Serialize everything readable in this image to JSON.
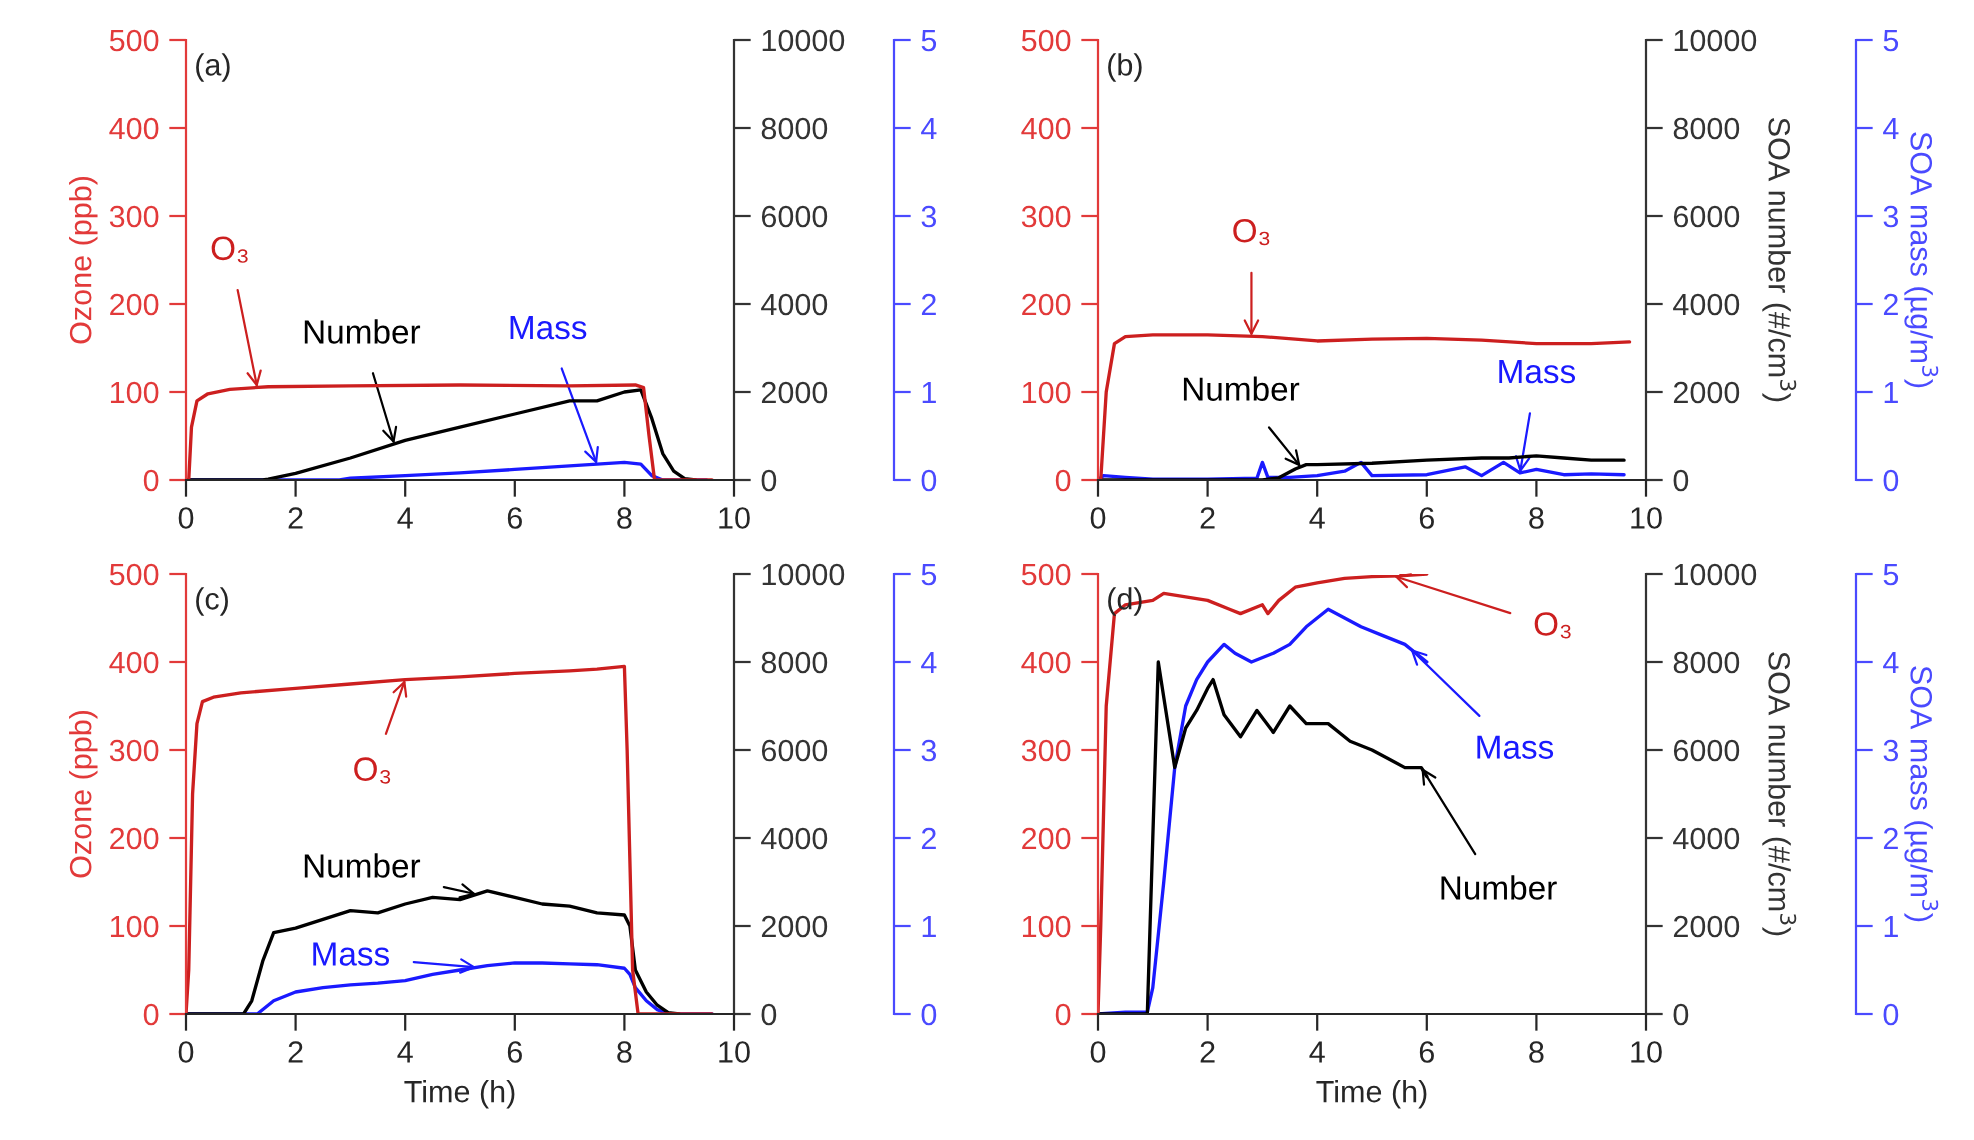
{
  "chart_data": [
    {
      "type": "line",
      "annotations": [
        "(a)"
      ],
      "ylabel": "Ozone (ppb)",
      "xlim": [
        0,
        10
      ],
      "xticks": [
        0,
        2,
        4,
        6,
        8,
        10
      ],
      "ylim": [
        0,
        500
      ],
      "yticks": [
        0,
        100,
        200,
        300,
        400,
        500
      ],
      "y2lim": [
        0,
        10000
      ],
      "y2ticks": [
        0,
        2000,
        4000,
        6000,
        8000,
        10000
      ],
      "y3lim": [
        0,
        5
      ],
      "y3ticks": [
        0,
        1,
        2,
        3,
        4,
        5
      ],
      "series": [
        {
          "name": "O₃",
          "color": "#cc1f1f",
          "x": [
            0,
            0.05,
            0.1,
            0.2,
            0.4,
            0.8,
            1.5,
            3,
            5,
            7,
            8.2,
            8.35,
            8.45,
            8.55,
            9.6
          ],
          "values": [
            0,
            0,
            60,
            90,
            98,
            103,
            106,
            107,
            108,
            107,
            108,
            105,
            50,
            0,
            0
          ]
        },
        {
          "name": "Number",
          "color": "#000000",
          "axis": "y2",
          "x": [
            0,
            1.4,
            1.5,
            2,
            3,
            4,
            5,
            6,
            7,
            7.5,
            8,
            8.3,
            8.5,
            8.7,
            8.9,
            9.1,
            9.3
          ],
          "values": [
            0,
            0,
            20,
            150,
            500,
            900,
            1200,
            1500,
            1800,
            1800,
            2000,
            2050,
            1400,
            600,
            200,
            30,
            0
          ]
        },
        {
          "name": "Mass",
          "color": "#1a1aff",
          "axis": "y3",
          "x": [
            0,
            2.8,
            3,
            4,
            5,
            6,
            7,
            8,
            8.3,
            8.5,
            8.7,
            9.5
          ],
          "values": [
            0,
            0,
            0.02,
            0.05,
            0.08,
            0.12,
            0.16,
            0.2,
            0.18,
            0.05,
            0,
            0
          ]
        }
      ]
    },
    {
      "type": "line",
      "annotations": [
        "(b)"
      ],
      "y2label": "SOA number (#/cm$^{3}$)",
      "y3label": "SOA mass (µg/m$^{3}$)",
      "xlim": [
        0,
        10
      ],
      "xticks": [
        0,
        2,
        4,
        6,
        8,
        10
      ],
      "ylim": [
        0,
        500
      ],
      "yticks": [
        0,
        100,
        200,
        300,
        400,
        500
      ],
      "y2lim": [
        0,
        10000
      ],
      "y2ticks": [
        0,
        2000,
        4000,
        6000,
        8000,
        10000
      ],
      "y3lim": [
        0,
        5
      ],
      "y3ticks": [
        0,
        1,
        2,
        3,
        4,
        5
      ],
      "series": [
        {
          "name": "O₃",
          "color": "#cc1f1f",
          "x": [
            0,
            0.05,
            0.15,
            0.3,
            0.5,
            1,
            2,
            3,
            4,
            5,
            6,
            7,
            8,
            9,
            9.7
          ],
          "values": [
            0,
            0,
            100,
            155,
            163,
            165,
            165,
            163,
            158,
            160,
            161,
            159,
            155,
            155,
            157
          ]
        },
        {
          "name": "Number",
          "color": "#000000",
          "axis": "y2",
          "x": [
            0,
            3,
            3.3,
            3.6,
            3.8,
            4,
            5,
            6,
            7,
            7.5,
            8,
            8.5,
            9,
            9.6
          ],
          "values": [
            0,
            0,
            50,
            250,
            350,
            350,
            380,
            450,
            500,
            500,
            550,
            500,
            450,
            450
          ]
        },
        {
          "name": "Mass",
          "color": "#1a1aff",
          "axis": "y3",
          "x": [
            0,
            0.1,
            0.5,
            1,
            2,
            2.9,
            3,
            3.1,
            3.5,
            4,
            4.5,
            4.8,
            5,
            6,
            6.7,
            7,
            7.4,
            7.7,
            8,
            8.5,
            9,
            9.6
          ],
          "values": [
            0,
            0.05,
            0.03,
            0.01,
            0.01,
            0.02,
            0.2,
            0.03,
            0.03,
            0.05,
            0.1,
            0.2,
            0.05,
            0.06,
            0.15,
            0.05,
            0.2,
            0.08,
            0.12,
            0.06,
            0.07,
            0.06
          ]
        }
      ]
    },
    {
      "type": "line",
      "annotations": [
        "(c)"
      ],
      "ylabel": "Ozone (ppb)",
      "xlabel": "Time (h)",
      "xlim": [
        0,
        10
      ],
      "xticks": [
        0,
        2,
        4,
        6,
        8,
        10
      ],
      "ylim": [
        0,
        500
      ],
      "yticks": [
        0,
        100,
        200,
        300,
        400,
        500
      ],
      "y2lim": [
        0,
        10000
      ],
      "y2ticks": [
        0,
        2000,
        4000,
        6000,
        8000,
        10000
      ],
      "y3lim": [
        0,
        5
      ],
      "y3ticks": [
        0,
        1,
        2,
        3,
        4,
        5
      ],
      "series": [
        {
          "name": "O₃",
          "color": "#cc1f1f",
          "x": [
            0,
            0.05,
            0.12,
            0.2,
            0.3,
            0.5,
            1,
            2,
            3,
            4,
            5,
            6,
            7,
            7.5,
            8,
            8.05,
            8.15,
            8.25,
            9.6
          ],
          "values": [
            0,
            50,
            250,
            330,
            355,
            360,
            365,
            370,
            375,
            380,
            383,
            387,
            390,
            392,
            395,
            300,
            50,
            0,
            0
          ]
        },
        {
          "name": "Number",
          "color": "#000000",
          "axis": "y2",
          "x": [
            0,
            1.05,
            1.2,
            1.4,
            1.6,
            2,
            2.5,
            3,
            3.5,
            4,
            4.5,
            5,
            5.5,
            6,
            6.5,
            7,
            7.5,
            8,
            8.1,
            8.2,
            8.4,
            8.6,
            8.8,
            9
          ],
          "values": [
            0,
            0,
            300,
            1200,
            1850,
            1950,
            2150,
            2350,
            2300,
            2500,
            2650,
            2600,
            2800,
            2650,
            2500,
            2450,
            2300,
            2250,
            2000,
            1000,
            500,
            200,
            30,
            0
          ]
        },
        {
          "name": "Mass",
          "color": "#1a1aff",
          "axis": "y3",
          "x": [
            0,
            1.3,
            1.6,
            2,
            2.5,
            3,
            3.5,
            4,
            4.5,
            5,
            5.5,
            6,
            6.5,
            7,
            7.5,
            8,
            8.1,
            8.2,
            8.4,
            8.6,
            8.8,
            9.6
          ],
          "values": [
            0,
            0,
            0.15,
            0.25,
            0.3,
            0.33,
            0.35,
            0.38,
            0.45,
            0.5,
            0.55,
            0.58,
            0.58,
            0.57,
            0.56,
            0.52,
            0.45,
            0.3,
            0.15,
            0.05,
            0,
            0
          ]
        }
      ]
    },
    {
      "type": "line",
      "annotations": [
        "(d)"
      ],
      "xlabel": "Time (h)",
      "y2label": "SOA number (#/cm$^{3}$)",
      "y3label": "SOA mass (µg/m$^{3}$)",
      "xlim": [
        0,
        10
      ],
      "xticks": [
        0,
        2,
        4,
        6,
        8,
        10
      ],
      "ylim": [
        0,
        500
      ],
      "yticks": [
        0,
        100,
        200,
        300,
        400,
        500
      ],
      "y2lim": [
        0,
        10000
      ],
      "y2ticks": [
        0,
        2000,
        4000,
        6000,
        8000,
        10000
      ],
      "y3lim": [
        0,
        5
      ],
      "y3ticks": [
        0,
        1,
        2,
        3,
        4,
        5
      ],
      "series": [
        {
          "name": "O₃",
          "color": "#cc1f1f",
          "x": [
            0,
            0.05,
            0.15,
            0.3,
            0.5,
            1,
            1.2,
            2,
            2.4,
            2.6,
            3,
            3.1,
            3.3,
            3.6,
            4,
            4.5,
            5,
            5.5,
            6
          ],
          "values": [
            0,
            100,
            350,
            455,
            465,
            470,
            478,
            470,
            460,
            455,
            465,
            455,
            470,
            485,
            490,
            495,
            497,
            498,
            500
          ]
        },
        {
          "name": "Mass",
          "color": "#1a1aff",
          "axis": "y3",
          "x": [
            0,
            0.5,
            0.9,
            1,
            1.2,
            1.4,
            1.6,
            1.8,
            2,
            2.3,
            2.5,
            2.8,
            3.2,
            3.5,
            3.8,
            4.2,
            4.5,
            4.8,
            5.2,
            5.6,
            6
          ],
          "values": [
            0,
            0.02,
            0.02,
            0.3,
            1.5,
            2.8,
            3.5,
            3.8,
            4,
            4.2,
            4.1,
            4,
            4.1,
            4.2,
            4.4,
            4.6,
            4.5,
            4.4,
            4.3,
            4.2,
            4
          ]
        },
        {
          "name": "Number",
          "color": "#000000",
          "axis": "y2",
          "x": [
            0,
            0.9,
            1,
            1.1,
            1.2,
            1.4,
            1.6,
            1.8,
            2,
            2.1,
            2.3,
            2.6,
            2.9,
            3.2,
            3.5,
            3.8,
            4.2,
            4.6,
            5,
            5.3,
            5.6,
            5.9,
            6
          ],
          "values": [
            0,
            0,
            4000,
            8000,
            7200,
            5600,
            6500,
            6900,
            7400,
            7600,
            6800,
            6300,
            6900,
            6400,
            7000,
            6600,
            6600,
            6200,
            6000,
            5800,
            5600,
            5600,
            5400
          ]
        }
      ]
    }
  ]
}
